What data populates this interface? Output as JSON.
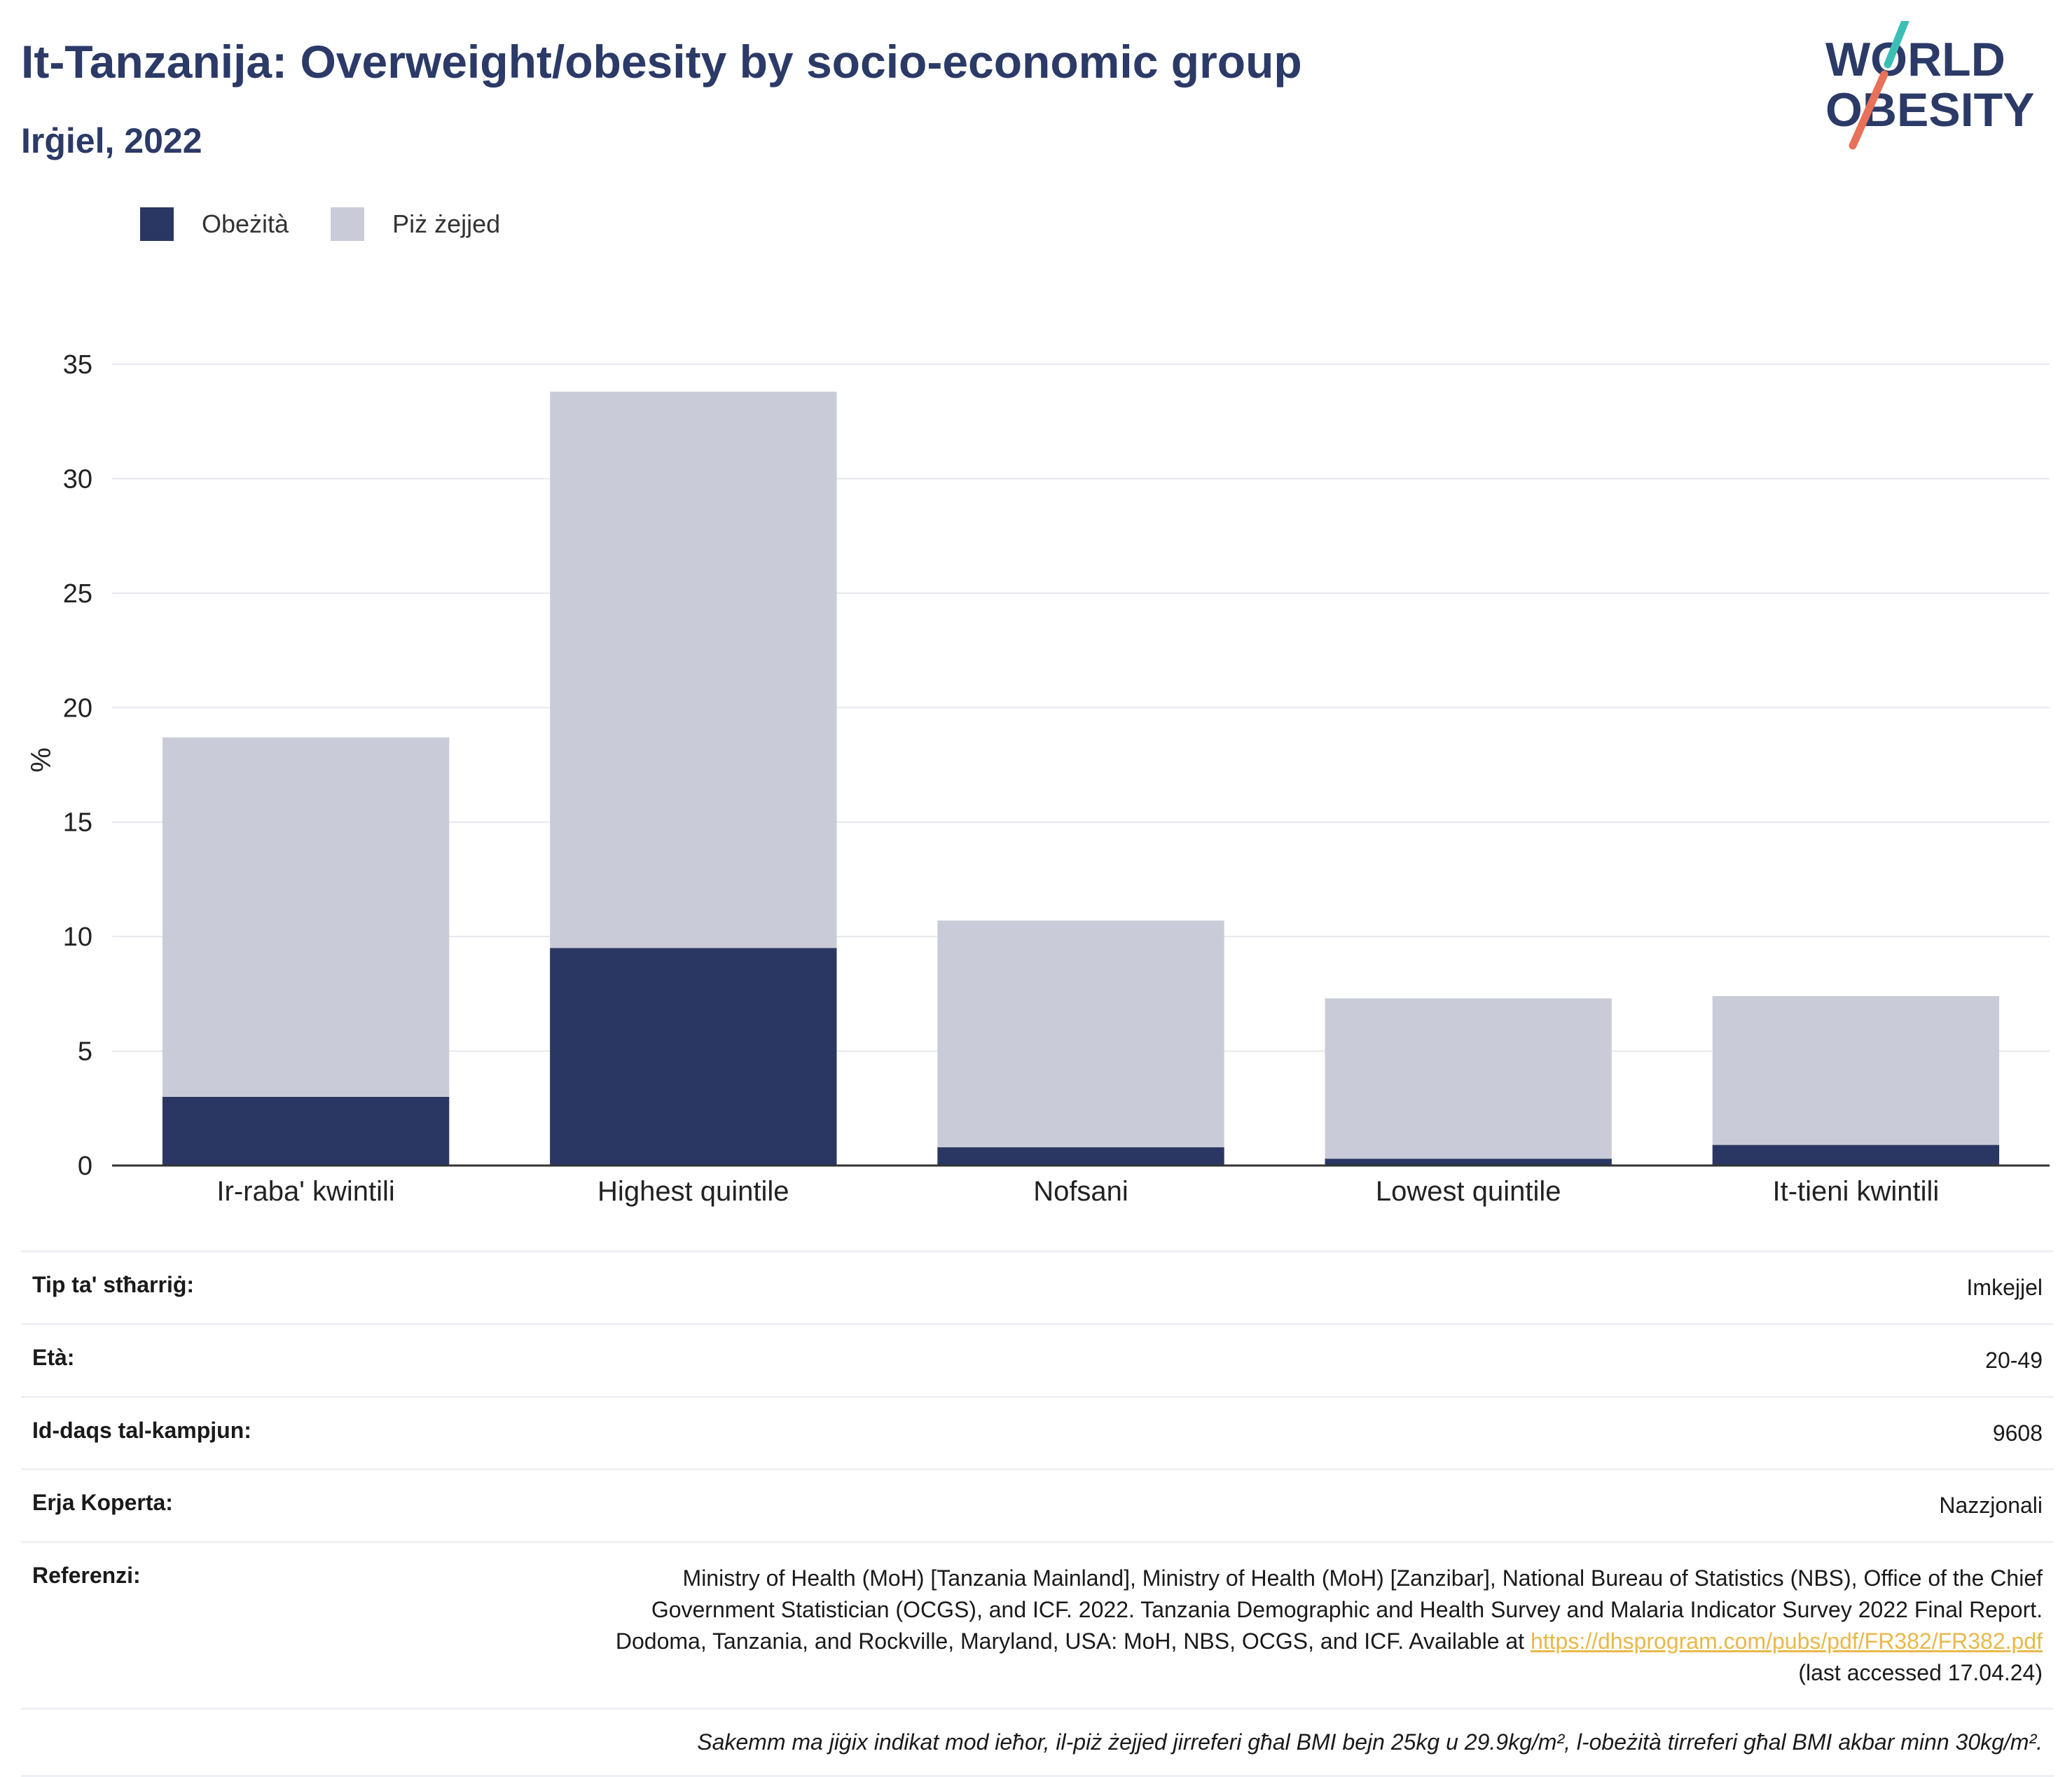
{
  "header": {
    "title": "It-Tanzanija: Overweight/obesity by socio-economic group",
    "subtitle": "Irġiel, 2022"
  },
  "logo": {
    "line1": "WORLD",
    "line2": "OBESITY"
  },
  "legend": [
    {
      "label": "Obeżità",
      "color": "#2b3763"
    },
    {
      "label": "Piż żejjed",
      "color": "#c9ccd8"
    }
  ],
  "chart_data": {
    "type": "bar",
    "stacked": true,
    "categories": [
      "Ir-raba' kwintili",
      "Highest quintile",
      "Nofsani",
      "Lowest quintile",
      "It-tieni kwintili"
    ],
    "series": [
      {
        "name": "Obeżità",
        "color": "#2b3763",
        "values": [
          3.0,
          9.5,
          0.8,
          0.3,
          0.9
        ]
      },
      {
        "name": "Piż żejjed",
        "color": "#c9ccd8",
        "values": [
          15.7,
          24.3,
          9.9,
          7.0,
          6.5
        ]
      }
    ],
    "ylabel": "%",
    "ylim": [
      0,
      35
    ],
    "yticks": [
      0,
      5,
      10,
      15,
      20,
      25,
      30,
      35
    ],
    "grid": true,
    "legend_position": "top-left"
  },
  "meta": [
    {
      "key": "Tip ta' stħarriġ:",
      "value": "Imkejjel"
    },
    {
      "key": "Età:",
      "value": "20-49"
    },
    {
      "key": "Id-daqs tal-kampjun:",
      "value": "9608"
    },
    {
      "key": "Erja Koperta:",
      "value": "Nazzjonali"
    }
  ],
  "reference": {
    "key": "Referenzi:",
    "text": "Ministry of Health (MoH) [Tanzania Mainland], Ministry of Health (MoH) [Zanzibar], National Bureau of Statistics (NBS), Office of the Chief Government Statistician (OCGS), and ICF. 2022. Tanzania Demographic and Health Survey and Malaria Indicator Survey 2022 Final Report. Dodoma, Tanzania, and Rockville, Maryland, USA: MoH, NBS, OCGS, and ICF. Available at",
    "link": "https://dhsprogram.com/pubs/pdf/FR382/FR382.pdf",
    "suffix": "(last accessed 17.04.24)"
  },
  "note": "Sakemm ma jiġix indikat mod ieħor, il-piż żejjed jirreferi għal BMI bejn 25kg u 29.9kg/m², l-obeżità tirreferi għal BMI akbar minn 30kg/m².",
  "colors": {
    "brand": "#2b3a67",
    "accent_teal": "#3bbfb4",
    "accent_coral": "#e8715a",
    "link": "#e8b84a"
  }
}
